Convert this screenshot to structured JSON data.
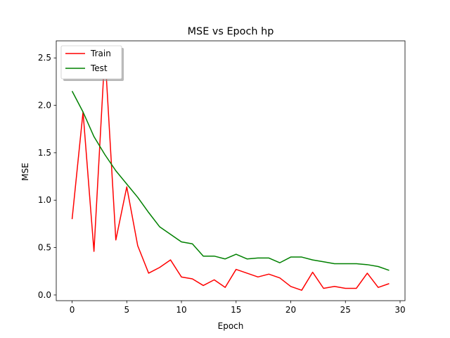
{
  "chart_data": {
    "type": "line",
    "title": "MSE vs Epoch hp",
    "xlabel": "Epoch",
    "ylabel": "MSE",
    "xlim": [
      -1.45,
      30.45
    ],
    "ylim": [
      -0.06,
      2.68
    ],
    "xticks": [
      0,
      5,
      10,
      15,
      20,
      25,
      30
    ],
    "xtick_labels": [
      "0",
      "5",
      "10",
      "15",
      "20",
      "25",
      "30"
    ],
    "yticks": [
      0.0,
      0.5,
      1.0,
      1.5,
      2.0,
      2.5
    ],
    "ytick_labels": [
      "0.0",
      "0.5",
      "1.0",
      "1.5",
      "2.0",
      "2.5"
    ],
    "grid": false,
    "legend_position": "top-left",
    "x": [
      0,
      1,
      2,
      3,
      4,
      5,
      6,
      7,
      8,
      9,
      10,
      11,
      12,
      13,
      14,
      15,
      16,
      17,
      18,
      19,
      20,
      21,
      22,
      23,
      24,
      25,
      26,
      27,
      28,
      29
    ],
    "series": [
      {
        "name": "Train",
        "color": "#ff0000",
        "values": [
          0.8,
          1.93,
          0.46,
          2.56,
          0.58,
          1.14,
          0.52,
          0.23,
          0.29,
          0.37,
          0.19,
          0.17,
          0.1,
          0.16,
          0.08,
          0.27,
          0.23,
          0.19,
          0.22,
          0.18,
          0.09,
          0.05,
          0.24,
          0.07,
          0.09,
          0.07,
          0.07,
          0.23,
          0.08,
          0.12
        ]
      },
      {
        "name": "Test",
        "color": "#008000",
        "values": [
          2.15,
          1.93,
          1.67,
          1.48,
          1.31,
          1.17,
          1.03,
          0.87,
          0.72,
          0.64,
          0.56,
          0.54,
          0.41,
          0.41,
          0.38,
          0.43,
          0.38,
          0.39,
          0.39,
          0.34,
          0.4,
          0.4,
          0.37,
          0.35,
          0.33,
          0.33,
          0.33,
          0.32,
          0.3,
          0.26
        ]
      }
    ]
  }
}
